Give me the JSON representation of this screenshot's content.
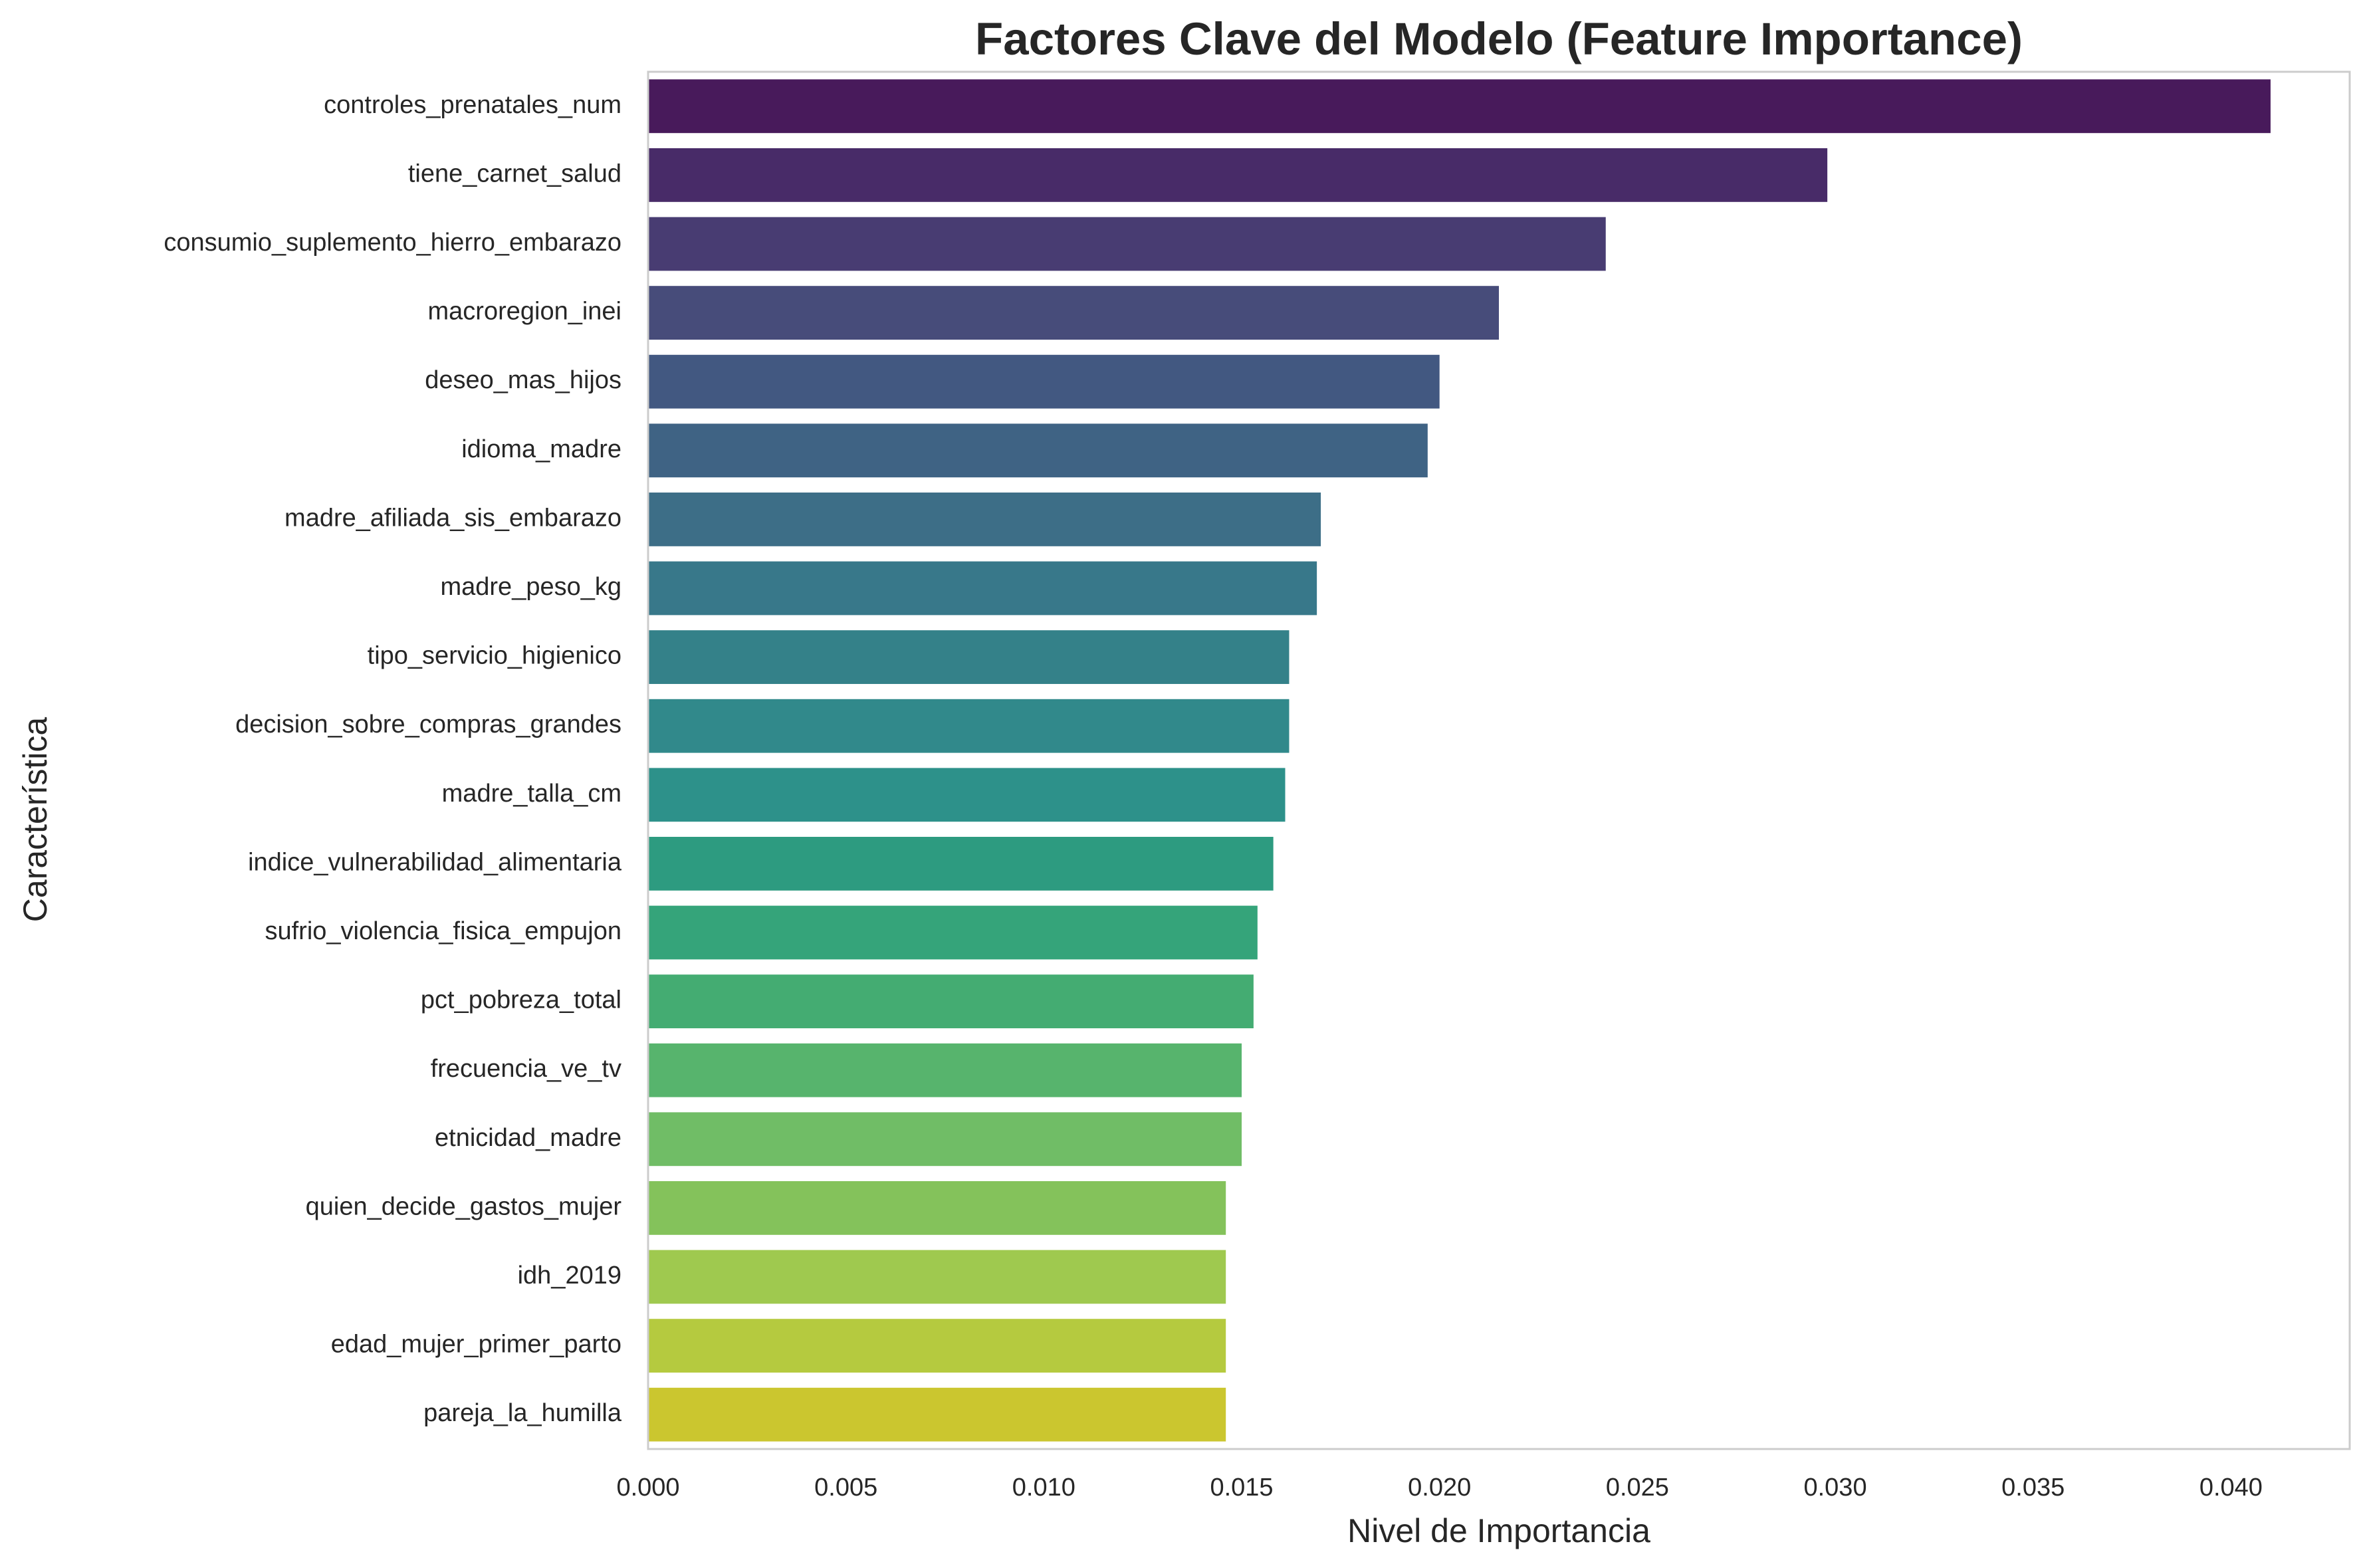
{
  "chart_data": {
    "type": "bar",
    "orientation": "horizontal",
    "title": "Factores Clave del Modelo (Feature Importance)",
    "xlabel": "Nivel de Importancia",
    "ylabel": "Característica",
    "xlim": [
      0,
      0.043
    ],
    "x_ticks": [
      "0.000",
      "0.005",
      "0.010",
      "0.015",
      "0.020",
      "0.025",
      "0.030",
      "0.035",
      "0.040"
    ],
    "x_tick_values": [
      0,
      0.005,
      0.01,
      0.015,
      0.02,
      0.025,
      0.03,
      0.035,
      0.04
    ],
    "grid": false,
    "palette": "viridis",
    "categories": [
      "controles_prenatales_num",
      "tiene_carnet_salud",
      "consumio_suplemento_hierro_embarazo",
      "macroregion_inei",
      "deseo_mas_hijos",
      "idioma_madre",
      "madre_afiliada_sis_embarazo",
      "madre_peso_kg",
      "tipo_servicio_higienico",
      "decision_sobre_compras_grandes",
      "madre_talla_cm",
      "indice_vulnerabilidad_alimentaria",
      "sufrio_violencia_fisica_empujon",
      "pct_pobreza_total",
      "frecuencia_ve_tv",
      "etnicidad_madre",
      "quien_decide_gastos_mujer",
      "idh_2019",
      "edad_mujer_primer_parto",
      "pareja_la_humilla"
    ],
    "values": [
      0.041,
      0.0298,
      0.0242,
      0.0215,
      0.02,
      0.0197,
      0.017,
      0.0169,
      0.0162,
      0.0162,
      0.0161,
      0.0158,
      0.0154,
      0.0153,
      0.015,
      0.015,
      0.0146,
      0.0146,
      0.0146,
      0.0146
    ],
    "colors": [
      "#481a5b",
      "#482b68",
      "#483c72",
      "#474c7a",
      "#425881",
      "#3f6384",
      "#3d6e87",
      "#38788a",
      "#348189",
      "#31898b",
      "#2d918a",
      "#2d9b80",
      "#35a47a",
      "#44ac72",
      "#57b46d",
      "#70bd66",
      "#84c25b",
      "#9fc94f",
      "#b5ca3f",
      "#cbc62f"
    ]
  }
}
